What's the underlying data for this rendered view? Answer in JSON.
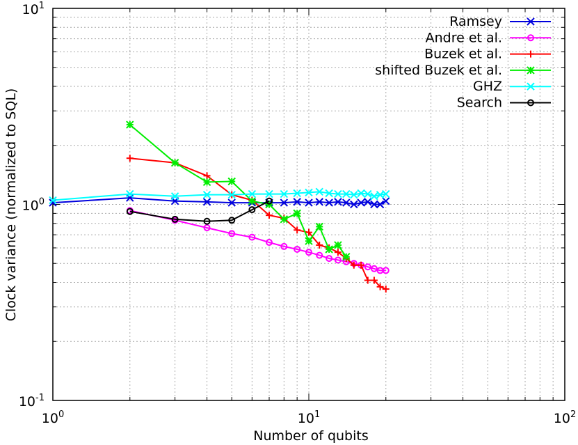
{
  "chart_data": {
    "type": "line",
    "xscale": "log",
    "yscale": "log",
    "xlim": [
      1,
      100
    ],
    "ylim": [
      0.1,
      10
    ],
    "xlabel": "Number of qubits",
    "ylabel": "Clock variance (normalized to SQL)",
    "grid": true,
    "legend_position": "top-right",
    "x_ticks": [
      {
        "base": "10",
        "exp": "0",
        "value": 1
      },
      {
        "base": "10",
        "exp": "1",
        "value": 10
      },
      {
        "base": "10",
        "exp": "2",
        "value": 100
      }
    ],
    "y_ticks": [
      {
        "base": "10",
        "exp": "-1",
        "value": 0.1
      },
      {
        "base": "10",
        "exp": "0",
        "value": 1
      },
      {
        "base": "10",
        "exp": "1",
        "value": 10
      }
    ],
    "series": [
      {
        "name": "Ramsey",
        "color": "#0000dd",
        "marker": "x",
        "points": [
          [
            1,
            1.02
          ],
          [
            2,
            1.08
          ],
          [
            3,
            1.04
          ],
          [
            4,
            1.03
          ],
          [
            5,
            1.02
          ],
          [
            6,
            1.02
          ],
          [
            7,
            1.02
          ],
          [
            8,
            1.02
          ],
          [
            9,
            1.03
          ],
          [
            10,
            1.02
          ],
          [
            11,
            1.03
          ],
          [
            12,
            1.02
          ],
          [
            13,
            1.03
          ],
          [
            14,
            1.02
          ],
          [
            15,
            1.0
          ],
          [
            16,
            1.02
          ],
          [
            17,
            1.03
          ],
          [
            18,
            1.0
          ],
          [
            19,
            1.0
          ],
          [
            20,
            1.04
          ]
        ]
      },
      {
        "name": "Andre et al.",
        "color": "#ff00ff",
        "marker": "o",
        "points": [
          [
            2,
            0.93
          ],
          [
            3,
            0.83
          ],
          [
            4,
            0.76
          ],
          [
            5,
            0.71
          ],
          [
            6,
            0.68
          ],
          [
            7,
            0.64
          ],
          [
            8,
            0.61
          ],
          [
            9,
            0.59
          ],
          [
            10,
            0.57
          ],
          [
            11,
            0.55
          ],
          [
            12,
            0.53
          ],
          [
            13,
            0.52
          ],
          [
            14,
            0.51
          ],
          [
            15,
            0.5
          ],
          [
            16,
            0.49
          ],
          [
            17,
            0.48
          ],
          [
            18,
            0.47
          ],
          [
            19,
            0.46
          ],
          [
            20,
            0.46
          ]
        ]
      },
      {
        "name": "Buzek et al.",
        "color": "#ff0000",
        "marker": "+",
        "points": [
          [
            2,
            1.72
          ],
          [
            3,
            1.63
          ],
          [
            4,
            1.4
          ],
          [
            5,
            1.12
          ],
          [
            6,
            1.05
          ],
          [
            7,
            0.88
          ],
          [
            8,
            0.85
          ],
          [
            9,
            0.74
          ],
          [
            10,
            0.72
          ],
          [
            11,
            0.62
          ],
          [
            12,
            0.6
          ],
          [
            13,
            0.57
          ],
          [
            14,
            0.53
          ],
          [
            15,
            0.49
          ],
          [
            16,
            0.49
          ],
          [
            17,
            0.41
          ],
          [
            18,
            0.41
          ],
          [
            19,
            0.38
          ],
          [
            20,
            0.37
          ]
        ]
      },
      {
        "name": "shifted Buzek et al.",
        "color": "#00ee00",
        "marker": "box-x",
        "points": [
          [
            2,
            2.55
          ],
          [
            3,
            1.63
          ],
          [
            4,
            1.3
          ],
          [
            5,
            1.31
          ],
          [
            6,
            1.04
          ],
          [
            7,
            1.0
          ],
          [
            8,
            0.84
          ],
          [
            9,
            0.9
          ],
          [
            10,
            0.65
          ],
          [
            11,
            0.77
          ],
          [
            12,
            0.59
          ],
          [
            13,
            0.62
          ],
          [
            14,
            0.54
          ]
        ]
      },
      {
        "name": "GHZ",
        "color": "#00ffff",
        "marker": "x",
        "points": [
          [
            1,
            1.05
          ],
          [
            2,
            1.13
          ],
          [
            3,
            1.1
          ],
          [
            4,
            1.12
          ],
          [
            5,
            1.12
          ],
          [
            6,
            1.13
          ],
          [
            7,
            1.13
          ],
          [
            8,
            1.13
          ],
          [
            9,
            1.14
          ],
          [
            10,
            1.15
          ],
          [
            11,
            1.16
          ],
          [
            12,
            1.14
          ],
          [
            13,
            1.13
          ],
          [
            14,
            1.13
          ],
          [
            15,
            1.12
          ],
          [
            16,
            1.14
          ],
          [
            17,
            1.13
          ],
          [
            18,
            1.1
          ],
          [
            19,
            1.12
          ],
          [
            20,
            1.13
          ]
        ]
      },
      {
        "name": "Search",
        "color": "#000000",
        "marker": "o",
        "points": [
          [
            2,
            0.92
          ],
          [
            3,
            0.84
          ],
          [
            4,
            0.82
          ],
          [
            5,
            0.83
          ],
          [
            6,
            0.94
          ],
          [
            7,
            1.04
          ]
        ]
      }
    ]
  }
}
